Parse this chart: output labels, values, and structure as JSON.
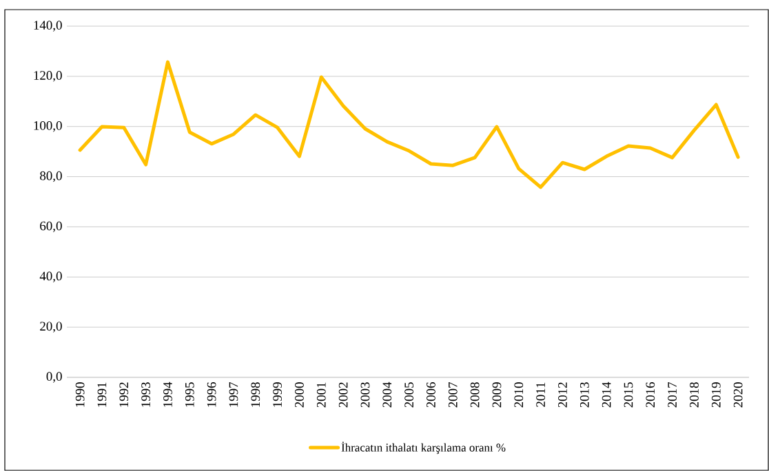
{
  "chart_data": {
    "type": "line",
    "categories": [
      "1990",
      "1991",
      "1992",
      "1993",
      "1994",
      "1995",
      "1996",
      "1997",
      "1998",
      "1999",
      "2000",
      "2001",
      "2002",
      "2003",
      "2004",
      "2005",
      "2006",
      "2007",
      "2008",
      "2009",
      "2010",
      "2011",
      "2012",
      "2013",
      "2014",
      "2015",
      "2016",
      "2017",
      "2018",
      "2019",
      "2020"
    ],
    "series": [
      {
        "name": "İhracatın ithalatı karşılama oranı %",
        "color": "#ffc000",
        "values": [
          90.6,
          99.9,
          99.6,
          84.8,
          125.7,
          97.7,
          93.1,
          96.9,
          104.6,
          99.6,
          88.1,
          119.7,
          108.2,
          99.1,
          93.9,
          90.3,
          85.1,
          84.5,
          87.6,
          99.9,
          83.2,
          75.8,
          85.6,
          82.9,
          88.1,
          92.2,
          91.4,
          87.6,
          98.5,
          108.7,
          87.8
        ]
      }
    ],
    "ylim": [
      0,
      140
    ],
    "yticks": [
      {
        "value": 0,
        "label": "0,0"
      },
      {
        "value": 20,
        "label": "20,0"
      },
      {
        "value": 40,
        "label": "40,0"
      },
      {
        "value": 60,
        "label": "60,0"
      },
      {
        "value": 80,
        "label": "80,0"
      },
      {
        "value": 100,
        "label": "100,0"
      },
      {
        "value": 120,
        "label": "120,0"
      },
      {
        "value": 140,
        "label": "140,0"
      }
    ],
    "grid": "y",
    "legend": "bottom",
    "line_style": "solid",
    "marker": "none"
  }
}
